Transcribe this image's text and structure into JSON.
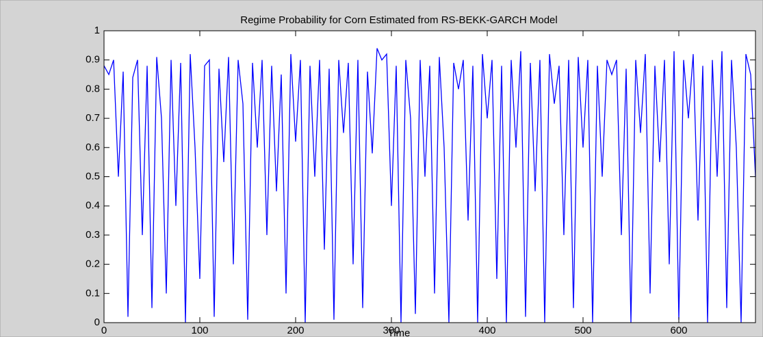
{
  "chart_data": {
    "type": "line",
    "title": "Regime Probability for Corn Estimated from RS-BEKK-GARCH Model",
    "x_label": "Time",
    "color": "#0000ff",
    "x": [
      0,
      5,
      10,
      15,
      20,
      25,
      30,
      35,
      40,
      45,
      50,
      55,
      60,
      65,
      70,
      75,
      80,
      85,
      90,
      95,
      100,
      105,
      110,
      115,
      120,
      125,
      130,
      135,
      140,
      145,
      150,
      155,
      160,
      165,
      170,
      175,
      180,
      185,
      190,
      195,
      200,
      205,
      210,
      215,
      220,
      225,
      230,
      235,
      240,
      245,
      250,
      255,
      260,
      265,
      270,
      275,
      280,
      285,
      290,
      295,
      300,
      305,
      310,
      315,
      320,
      325,
      330,
      335,
      340,
      345,
      350,
      355,
      360,
      365,
      370,
      375,
      380,
      385,
      390,
      395,
      400,
      405,
      410,
      415,
      420,
      425,
      430,
      435,
      440,
      445,
      450,
      455,
      460,
      465,
      470,
      475,
      480,
      485,
      490,
      495,
      500,
      505,
      510,
      515,
      520,
      525,
      530,
      535,
      540,
      545,
      550,
      555,
      560,
      565,
      570,
      575,
      580,
      585,
      590,
      595,
      600,
      605,
      610,
      615,
      620,
      625,
      630,
      635,
      640,
      645,
      650,
      655,
      660,
      665,
      670,
      675,
      680
    ],
    "values": [
      0.88,
      0.85,
      0.9,
      0.5,
      0.86,
      0.02,
      0.84,
      0.9,
      0.3,
      0.88,
      0.05,
      0.91,
      0.7,
      0.1,
      0.9,
      0.4,
      0.89,
      0.0,
      0.92,
      0.6,
      0.15,
      0.88,
      0.9,
      0.02,
      0.87,
      0.55,
      0.91,
      0.2,
      0.9,
      0.75,
      0.01,
      0.89,
      0.6,
      0.9,
      0.3,
      0.88,
      0.45,
      0.85,
      0.1,
      0.92,
      0.62,
      0.9,
      0.0,
      0.88,
      0.5,
      0.9,
      0.25,
      0.87,
      0.01,
      0.9,
      0.65,
      0.89,
      0.2,
      0.9,
      0.05,
      0.86,
      0.58,
      0.94,
      0.9,
      0.92,
      0.4,
      0.88,
      0.0,
      0.9,
      0.7,
      0.03,
      0.9,
      0.5,
      0.88,
      0.1,
      0.91,
      0.6,
      0.0,
      0.89,
      0.8,
      0.9,
      0.35,
      0.88,
      0.0,
      0.92,
      0.7,
      0.9,
      0.15,
      0.88,
      0.0,
      0.9,
      0.6,
      0.93,
      0.02,
      0.89,
      0.45,
      0.9,
      0.0,
      0.92,
      0.75,
      0.88,
      0.3,
      0.9,
      0.05,
      0.91,
      0.6,
      0.9,
      0.0,
      0.88,
      0.5,
      0.9,
      0.85,
      0.9,
      0.3,
      0.87,
      0.0,
      0.9,
      0.65,
      0.92,
      0.1,
      0.88,
      0.55,
      0.9,
      0.2,
      0.93,
      0.01,
      0.9,
      0.7,
      0.92,
      0.35,
      0.88,
      0.0,
      0.9,
      0.5,
      0.93,
      0.05,
      0.9,
      0.6,
      0.0,
      0.92,
      0.85,
      0.5
    ],
    "xlim": [
      0,
      680
    ],
    "xticks": [
      0,
      100,
      200,
      300,
      400,
      500,
      600
    ],
    "ylim": [
      0,
      1
    ],
    "yticks": [
      0,
      0.1,
      0.2,
      0.3,
      0.4,
      0.5,
      0.6,
      0.7,
      0.8,
      0.9,
      1
    ],
    "grid": false
  }
}
